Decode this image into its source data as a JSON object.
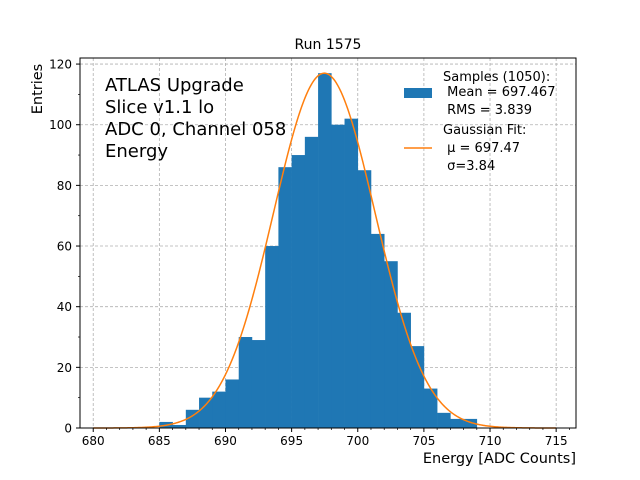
{
  "chart_data": {
    "type": "bar",
    "title": "Run 1575",
    "xlabel": "Energy [ADC Counts]",
    "ylabel": "Entries",
    "xlim": [
      679,
      716.5
    ],
    "ylim": [
      0,
      122
    ],
    "xticks": [
      680,
      685,
      690,
      695,
      700,
      705,
      710,
      715
    ],
    "yticks": [
      0,
      20,
      40,
      60,
      80,
      100,
      120
    ],
    "grid": true,
    "bin_width": 1,
    "bins": [
      {
        "left": 685,
        "count": 2
      },
      {
        "left": 686,
        "count": 1
      },
      {
        "left": 687,
        "count": 6
      },
      {
        "left": 688,
        "count": 10
      },
      {
        "left": 689,
        "count": 12
      },
      {
        "left": 690,
        "count": 16
      },
      {
        "left": 691,
        "count": 30
      },
      {
        "left": 692,
        "count": 29
      },
      {
        "left": 693,
        "count": 60
      },
      {
        "left": 694,
        "count": 86
      },
      {
        "left": 695,
        "count": 90
      },
      {
        "left": 696,
        "count": 96
      },
      {
        "left": 697,
        "count": 117
      },
      {
        "left": 698,
        "count": 100
      },
      {
        "left": 699,
        "count": 102
      },
      {
        "left": 700,
        "count": 85
      },
      {
        "left": 701,
        "count": 64
      },
      {
        "left": 702,
        "count": 55
      },
      {
        "left": 703,
        "count": 38
      },
      {
        "left": 704,
        "count": 27
      },
      {
        "left": 705,
        "count": 13
      },
      {
        "left": 706,
        "count": 5
      },
      {
        "left": 707,
        "count": 3
      },
      {
        "left": 708,
        "count": 3
      }
    ],
    "fit": {
      "mu": 697.47,
      "sigma": 3.84,
      "amplitude": 117
    },
    "annotation_lines": [
      "ATLAS Upgrade",
      "Slice v1.1 lo",
      "ADC 0, Channel 058",
      "Energy"
    ],
    "legend": {
      "placement": "top-right",
      "samples_lines": [
        "Samples (1050):",
        " Mean = 697.467",
        " RMS = 3.839"
      ],
      "fit_lines": [
        "Gaussian Fit:",
        " μ = 697.47",
        " σ=3.84"
      ]
    },
    "colors": {
      "bars": "#1f77b4",
      "fit": "#ff7f0e",
      "grid": "#b0b0b0"
    }
  }
}
